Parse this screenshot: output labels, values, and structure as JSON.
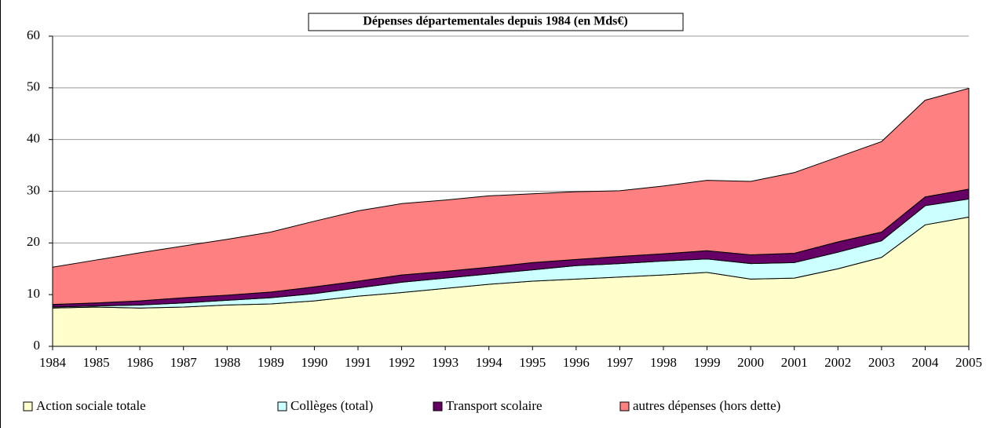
{
  "chart_data": {
    "type": "stacked_area",
    "title": "Dépenses départementales depuis 1984 (en Mds€)",
    "categories": [
      "1984",
      "1985",
      "1986",
      "1987",
      "1988",
      "1989",
      "1990",
      "1991",
      "1992",
      "1993",
      "1994",
      "1995",
      "1996",
      "1997",
      "1998",
      "1999",
      "2000",
      "2001",
      "2002",
      "2003",
      "2004",
      "2005"
    ],
    "series": [
      {
        "name": "Action sociale totale",
        "color": "#ffffcc",
        "values": [
          7.4,
          7.6,
          7.4,
          7.6,
          8.0,
          8.2,
          8.8,
          9.7,
          10.4,
          11.2,
          12.0,
          12.6,
          13.0,
          13.4,
          13.8,
          14.3,
          13.0,
          13.2,
          15.0,
          17.2,
          23.5,
          25.0
        ]
      },
      {
        "name": "Collèges (total)",
        "color": "#ccffff",
        "values": [
          0.2,
          0.2,
          0.6,
          0.8,
          0.9,
          1.2,
          1.4,
          1.6,
          2.0,
          2.0,
          2.0,
          2.2,
          2.6,
          2.6,
          2.7,
          2.6,
          3.0,
          3.0,
          3.2,
          3.2,
          3.7,
          3.5
        ]
      },
      {
        "name": "Transport scolaire",
        "color": "#660066",
        "values": [
          0.5,
          0.6,
          0.8,
          1.0,
          1.0,
          1.1,
          1.3,
          1.3,
          1.4,
          1.3,
          1.3,
          1.4,
          1.2,
          1.4,
          1.4,
          1.6,
          1.7,
          1.8,
          2.0,
          1.7,
          1.7,
          1.9
        ]
      },
      {
        "name": "autres dépenses (hors dette)",
        "color": "#ff8080",
        "values": [
          7.2,
          8.3,
          9.3,
          10.0,
          10.8,
          11.6,
          12.7,
          13.6,
          13.8,
          13.8,
          13.8,
          13.3,
          13.1,
          12.7,
          13.1,
          13.6,
          14.2,
          15.6,
          16.4,
          17.5,
          18.7,
          19.5
        ]
      }
    ],
    "ylim": [
      0,
      60
    ],
    "yticks": [
      0,
      10,
      20,
      30,
      40,
      50,
      60
    ],
    "grid": true
  }
}
